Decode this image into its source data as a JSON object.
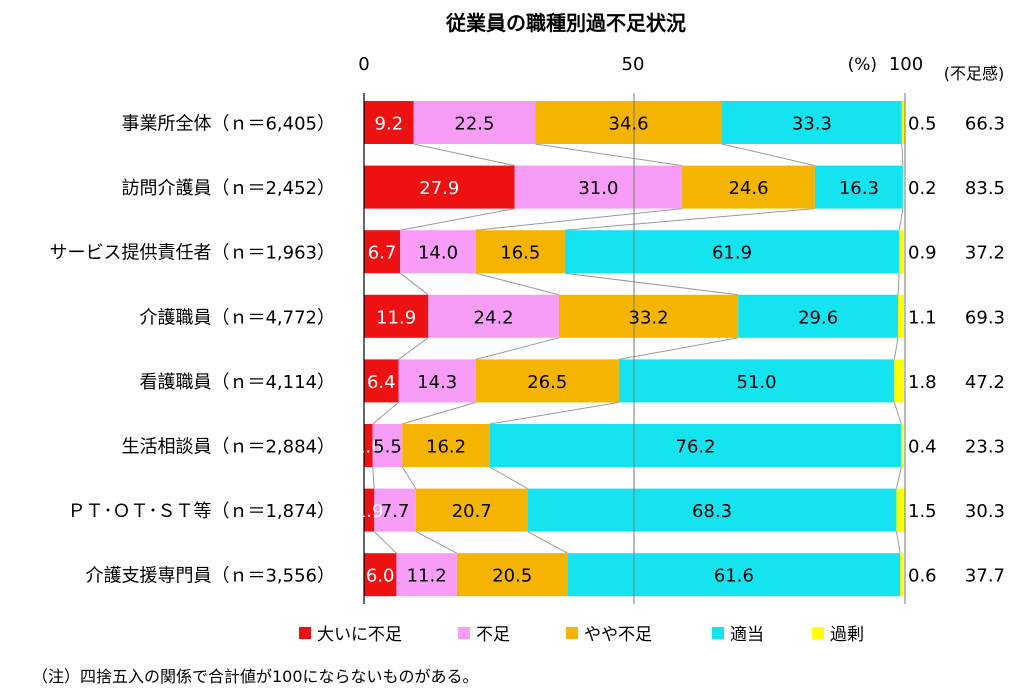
{
  "chart_data": {
    "type": "bar",
    "orientation": "horizontal",
    "stacked": true,
    "title": "従業員の職種別過不足状況",
    "xlim": [
      0,
      100
    ],
    "x_ticks": [
      "0",
      "50",
      "100"
    ],
    "unit_label": "(%)",
    "right_column_label": "(不足感)",
    "categories": [
      "事業所全体（ｎ＝6,405）",
      "訪問介護員（ｎ＝2,452）",
      "サービス提供責任者（ｎ＝1,963）",
      "介護職員（ｎ＝4,772）",
      "看護職員（ｎ＝4,114）",
      "生活相談員（ｎ＝2,884）",
      "ＰＴ･ＯＴ･ＳＴ等（ｎ＝1,874）",
      "介護支援専門員（ｎ＝3,556）"
    ],
    "series": [
      {
        "name": "大いに不足",
        "color": "#ee1111",
        "label_color": "#ffffff",
        "values": [
          9.2,
          27.9,
          6.7,
          11.9,
          6.4,
          1.6,
          1.9,
          6.0
        ]
      },
      {
        "name": "不足",
        "color": "#f79cf7",
        "label_color": "#000000",
        "values": [
          22.5,
          31.0,
          14.0,
          24.2,
          14.3,
          5.5,
          7.7,
          11.2
        ]
      },
      {
        "name": "やや不足",
        "color": "#f5b400",
        "label_color": "#000000",
        "values": [
          34.6,
          24.6,
          16.5,
          33.2,
          26.5,
          16.2,
          20.7,
          20.5
        ]
      },
      {
        "name": "適当",
        "color": "#14e4f0",
        "label_color": "#000000",
        "values": [
          33.3,
          16.3,
          61.9,
          29.6,
          51.0,
          76.2,
          68.3,
          61.6
        ]
      },
      {
        "name": "過剰",
        "color": "#ffff00",
        "label_color": "#000000",
        "values": [
          0.5,
          0.2,
          0.9,
          1.1,
          1.8,
          0.4,
          1.5,
          0.6
        ]
      }
    ],
    "shortage_sense": [
      66.3,
      83.5,
      37.2,
      69.3,
      47.2,
      23.3,
      30.3,
      37.7
    ],
    "grid": false,
    "legend_position": "bottom"
  },
  "note": "（注）四捨五入の関係で合計値が100にならないものがある。"
}
